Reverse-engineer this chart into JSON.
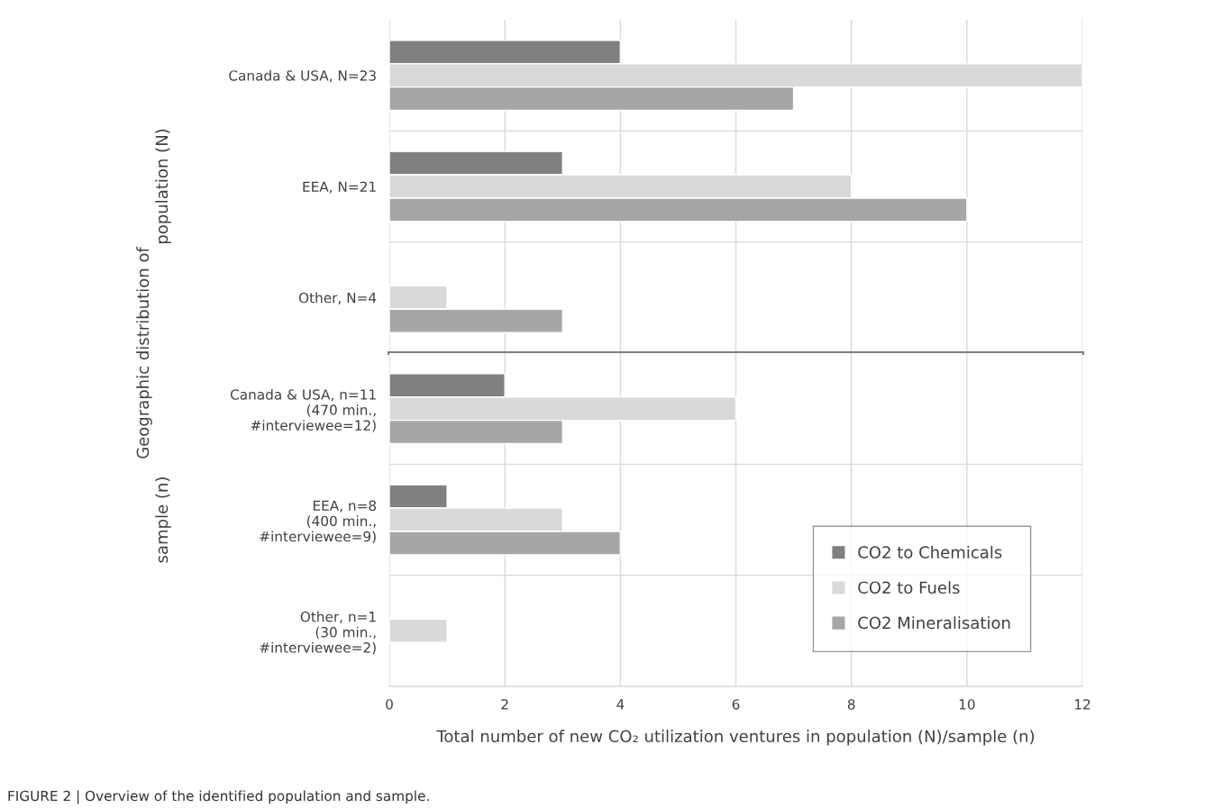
{
  "chart_data": [
    {
      "type": "bar",
      "orientation": "horizontal",
      "categories": [
        "Canada & USA, N=23",
        "EEA, N=21",
        "Other, N=4"
      ],
      "ylabel": "population (N)",
      "annotations": [
        "Geographic distribution of"
      ],
      "series": [
        {
          "color": "#808080",
          "values": [
            4,
            3,
            null
          ]
        },
        {
          "color": "#d9d9d9",
          "values": [
            12,
            8,
            1
          ]
        },
        {
          "color": "#a6a6a6",
          "values": [
            7,
            10,
            3
          ]
        }
      ],
      "xlim": [
        0,
        12
      ],
      "xticks": [
        0,
        2,
        4,
        6,
        8,
        10,
        12
      ],
      "grid": "x",
      "tick_labels": "y"
    },
    {
      "type": "bar",
      "orientation": "horizontal",
      "categories": [
        "Canada & USA, n=11\n(470 min.,\n#interviewee=12)",
        "EEA, n=8\n(400 min.,\n#interviewee=9)",
        "Other, n=1\n(30 min.,\n#interviewee=2)"
      ],
      "ylabel": "sample (n)",
      "xlabel": "Total number of new CO₂ utilization ventures in population (N)/sample (n)",
      "annotations": [
        "FIGURE 2 | Overview of the identified population and sample."
      ],
      "series": [
        {
          "name": "CO2 to Chemicals",
          "color": "#808080",
          "values": [
            2,
            1,
            null
          ]
        },
        {
          "name": "CO2 to Fuels",
          "color": "#d9d9d9",
          "values": [
            6,
            3,
            1
          ]
        },
        {
          "name": "CO2 Mineralisation",
          "color": "#a6a6a6",
          "values": [
            3,
            4,
            null
          ]
        }
      ],
      "xlim": [
        0,
        12
      ],
      "xticks": [
        0,
        2,
        4,
        6,
        8,
        10,
        12
      ],
      "grid": "x",
      "legend": "bottom right"
    }
  ]
}
